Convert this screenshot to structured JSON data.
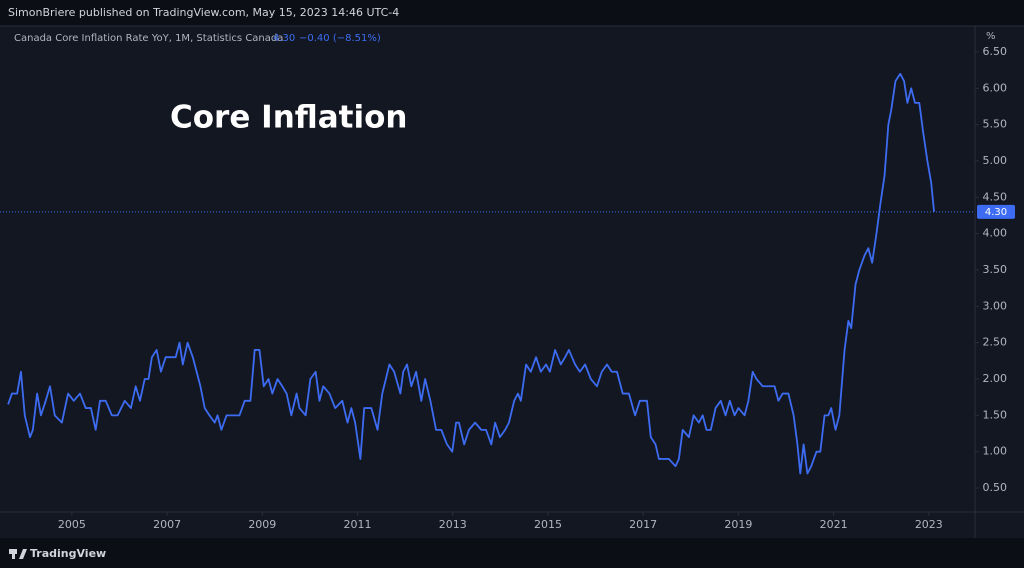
{
  "header": "SimonBriere published on TradingView.com, May 15, 2023 14:46 UTC-4",
  "footer": "TradingView",
  "chart_data": {
    "type": "line",
    "legend_title": "Canada Core Inflation Rate YoY, 1M, Statistics Canada",
    "last_label": "4.30",
    "change_label": "−0.40 (−8.51%)",
    "unit": "%",
    "annotation": "Core Inflation",
    "xlim": [
      2003.49,
      2023.97
    ],
    "xticks": [
      2005,
      2007,
      2009,
      2011,
      2013,
      2015,
      2017,
      2019,
      2021,
      2023
    ],
    "ylim": [
      0.17,
      6.83
    ],
    "yticks": [
      {
        "value": 0.5,
        "label": "0.50"
      },
      {
        "value": 1,
        "label": "1.00"
      },
      {
        "value": 1.5,
        "label": "1.50"
      },
      {
        "value": 2,
        "label": "2.00"
      },
      {
        "value": 2.5,
        "label": "2.50"
      },
      {
        "value": 3,
        "label": "3.00"
      },
      {
        "value": 3.5,
        "label": "3.50"
      },
      {
        "value": 4,
        "label": "4.00"
      },
      {
        "value": 4.5,
        "label": "4.50"
      },
      {
        "value": 5,
        "label": "5.00"
      },
      {
        "value": 5.5,
        "label": "5.50"
      },
      {
        "value": 6,
        "label": "6.00"
      },
      {
        "value": 6.5,
        "label": "6.50"
      }
    ],
    "grid": false,
    "series": [
      {
        "color": "#3d6cf2",
        "x": [
          2003.66,
          2003.74,
          2003.85,
          2003.93,
          2004.01,
          2004.12,
          2004.18,
          2004.27,
          2004.35,
          2004.45,
          2004.54,
          2004.64,
          2004.79,
          2004.92,
          2005.04,
          2005.17,
          2005.29,
          2005.4,
          2005.5,
          2005.59,
          2005.71,
          2005.84,
          2005.96,
          2006.11,
          2006.24,
          2006.34,
          2006.43,
          2006.53,
          2006.61,
          2006.68,
          2006.78,
          2006.87,
          2006.97,
          2007.1,
          2007.18,
          2007.26,
          2007.33,
          2007.43,
          2007.54,
          2007.62,
          2007.7,
          2007.79,
          2007.89,
          2008.0,
          2008.06,
          2008.14,
          2008.25,
          2008.4,
          2008.52,
          2008.63,
          2008.75,
          2008.84,
          2008.94,
          2009.03,
          2009.13,
          2009.21,
          2009.32,
          2009.42,
          2009.51,
          2009.61,
          2009.72,
          2009.78,
          2009.91,
          2010.01,
          2010.12,
          2010.2,
          2010.28,
          2010.41,
          2010.53,
          2010.68,
          2010.79,
          2010.87,
          2010.95,
          2011.06,
          2011.14,
          2011.29,
          2011.42,
          2011.52,
          2011.67,
          2011.77,
          2011.9,
          2011.96,
          2012.04,
          2012.13,
          2012.23,
          2012.34,
          2012.42,
          2012.53,
          2012.65,
          2012.76,
          2012.88,
          2012.99,
          2013.07,
          2013.13,
          2013.24,
          2013.34,
          2013.47,
          2013.6,
          2013.7,
          2013.81,
          2013.89,
          2013.99,
          2014.1,
          2014.18,
          2014.29,
          2014.37,
          2014.43,
          2014.54,
          2014.64,
          2014.75,
          2014.85,
          2014.96,
          2015.04,
          2015.15,
          2015.27,
          2015.36,
          2015.44,
          2015.57,
          2015.67,
          2015.78,
          2015.9,
          2016.03,
          2016.13,
          2016.24,
          2016.34,
          2016.45,
          2016.57,
          2016.7,
          2016.83,
          2016.93,
          2017.08,
          2017.16,
          2017.26,
          2017.33,
          2017.54,
          2017.68,
          2017.75,
          2017.83,
          2017.96,
          2018.06,
          2018.17,
          2018.25,
          2018.33,
          2018.42,
          2018.52,
          2018.63,
          2018.73,
          2018.82,
          2018.92,
          2019.0,
          2019.13,
          2019.21,
          2019.3,
          2019.38,
          2019.51,
          2019.63,
          2019.76,
          2019.84,
          2019.93,
          2020.05,
          2020.16,
          2020.24,
          2020.3,
          2020.37,
          2020.45,
          2020.53,
          2020.64,
          2020.72,
          2020.81,
          2020.89,
          2020.95,
          2021.04,
          2021.12,
          2021.23,
          2021.31,
          2021.37,
          2021.46,
          2021.54,
          2021.65,
          2021.73,
          2021.81,
          2021.9,
          2021.98,
          2022.07,
          2022.15,
          2022.21,
          2022.3,
          2022.4,
          2022.48,
          2022.55,
          2022.63,
          2022.71,
          2022.8,
          2022.88,
          2022.97,
          2023.05,
          2023.11
        ],
        "values": [
          1.65,
          1.8,
          1.8,
          2.1,
          1.5,
          1.2,
          1.3,
          1.8,
          1.5,
          1.7,
          1.9,
          1.5,
          1.4,
          1.8,
          1.7,
          1.8,
          1.6,
          1.6,
          1.3,
          1.7,
          1.7,
          1.5,
          1.5,
          1.7,
          1.6,
          1.9,
          1.7,
          2.0,
          2.0,
          2.3,
          2.4,
          2.1,
          2.3,
          2.3,
          2.3,
          2.5,
          2.2,
          2.5,
          2.3,
          2.1,
          1.9,
          1.6,
          1.5,
          1.4,
          1.5,
          1.3,
          1.5,
          1.5,
          1.5,
          1.7,
          1.7,
          2.4,
          2.4,
          1.9,
          2.0,
          1.8,
          2.0,
          1.9,
          1.8,
          1.5,
          1.8,
          1.6,
          1.5,
          2.0,
          2.1,
          1.7,
          1.9,
          1.8,
          1.6,
          1.7,
          1.4,
          1.6,
          1.4,
          0.9,
          1.6,
          1.6,
          1.3,
          1.8,
          2.2,
          2.1,
          1.8,
          2.1,
          2.2,
          1.9,
          2.1,
          1.7,
          2.0,
          1.7,
          1.3,
          1.3,
          1.1,
          1.0,
          1.4,
          1.4,
          1.1,
          1.3,
          1.4,
          1.3,
          1.3,
          1.1,
          1.4,
          1.2,
          1.3,
          1.4,
          1.7,
          1.8,
          1.7,
          2.2,
          2.1,
          2.3,
          2.1,
          2.2,
          2.1,
          2.4,
          2.2,
          2.3,
          2.4,
          2.2,
          2.1,
          2.2,
          2.0,
          1.9,
          2.1,
          2.2,
          2.1,
          2.1,
          1.8,
          1.8,
          1.5,
          1.7,
          1.7,
          1.2,
          1.1,
          0.9,
          0.9,
          0.8,
          0.9,
          1.3,
          1.2,
          1.5,
          1.4,
          1.5,
          1.3,
          1.3,
          1.6,
          1.7,
          1.5,
          1.7,
          1.5,
          1.6,
          1.5,
          1.7,
          2.1,
          2.0,
          1.9,
          1.9,
          1.9,
          1.7,
          1.8,
          1.8,
          1.5,
          1.1,
          0.7,
          1.1,
          0.7,
          0.8,
          1.0,
          1.0,
          1.5,
          1.5,
          1.6,
          1.3,
          1.5,
          2.4,
          2.8,
          2.7,
          3.3,
          3.5,
          3.7,
          3.8,
          3.6,
          4.0,
          4.4,
          4.8,
          5.5,
          5.7,
          6.1,
          6.2,
          6.1,
          5.8,
          6.0,
          5.8,
          5.8,
          5.4,
          5.0,
          4.7,
          4.3
        ]
      }
    ]
  }
}
